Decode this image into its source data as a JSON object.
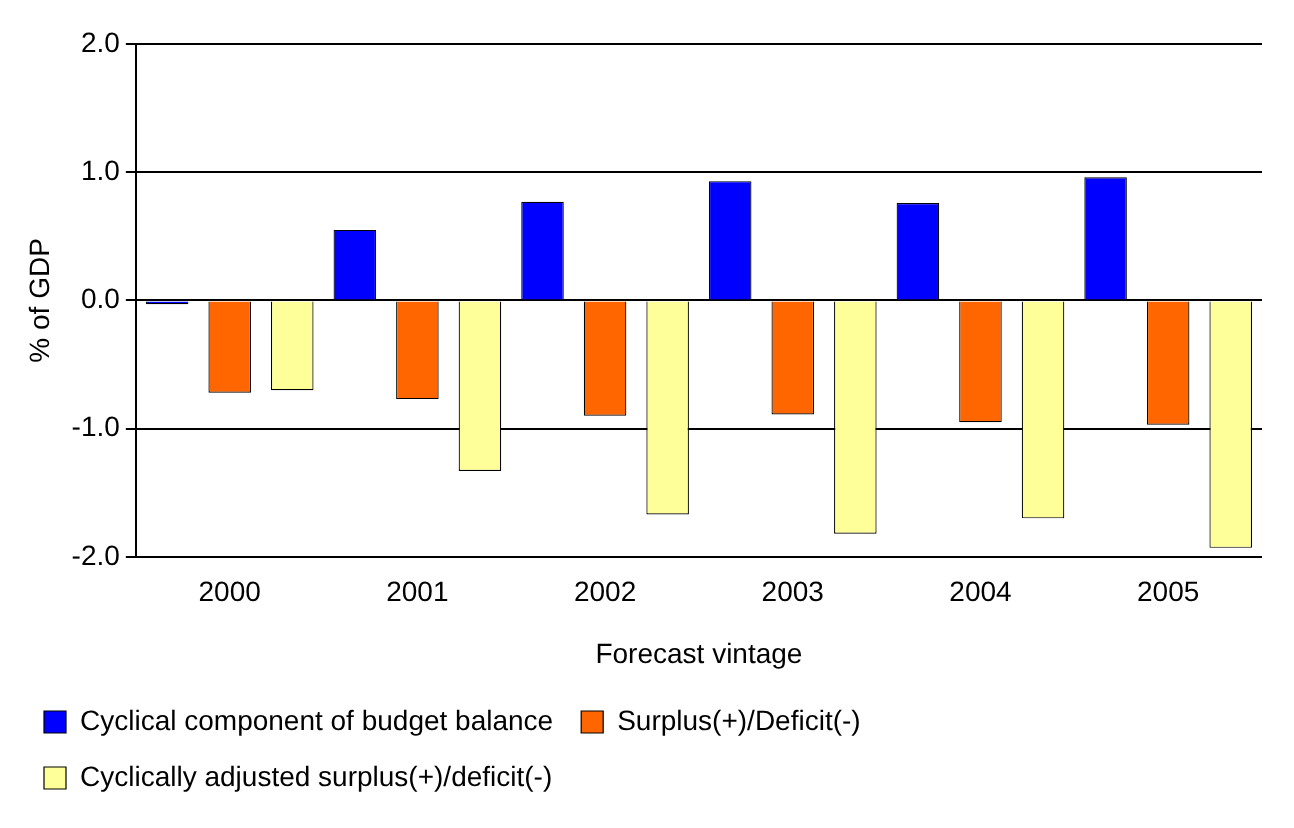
{
  "chart_data": {
    "type": "bar",
    "xlabel": "Forecast vintage",
    "ylabel": "% of GDP",
    "categories": [
      "2000",
      "2001",
      "2002",
      "2003",
      "2004",
      "2005"
    ],
    "series": [
      {
        "name": "Cyclical component of budget balance",
        "color": "#0000ff",
        "values": [
          -0.03,
          0.55,
          0.77,
          0.93,
          0.76,
          0.96
        ]
      },
      {
        "name": "Surplus(+)/Deficit(-)",
        "color": "#ff6600",
        "values": [
          -0.72,
          -0.77,
          -0.9,
          -0.89,
          -0.95,
          -0.97
        ]
      },
      {
        "name": "Cyclically adjusted surplus(+)/deficit(-)",
        "color": "#ffff99",
        "values": [
          -0.7,
          -1.33,
          -1.67,
          -1.82,
          -1.7,
          -1.93
        ]
      }
    ],
    "ylim": [
      -2,
      2
    ],
    "yticks": [
      {
        "value": -2,
        "label": "-2.0"
      },
      {
        "value": -1,
        "label": "-1.0"
      },
      {
        "value": 0,
        "label": "0.0"
      },
      {
        "value": 1,
        "label": "1.0"
      },
      {
        "value": 2,
        "label": "2.0"
      }
    ],
    "grid": "y",
    "legend": "bottom"
  }
}
